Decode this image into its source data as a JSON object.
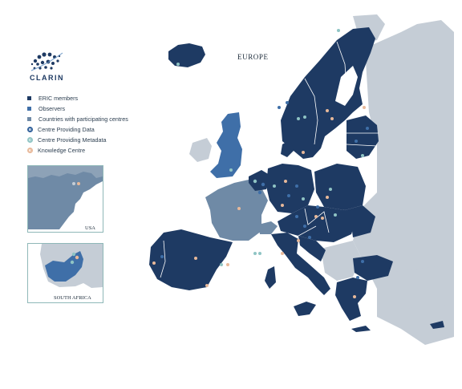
{
  "logo": {
    "name": "CLARIN"
  },
  "map": {
    "title": "EUROPE"
  },
  "legend": {
    "items": [
      {
        "label": "ERIC members",
        "kind": "square",
        "color": "#1e3a63"
      },
      {
        "label": "Observers",
        "kind": "square",
        "color": "#3f6fa8"
      },
      {
        "label": "Countries with participating centres",
        "kind": "square",
        "color": "#6f8aa6"
      },
      {
        "label": "Centre Providing Data",
        "kind": "dot",
        "glyph": "B",
        "color": "#2f5f9a"
      },
      {
        "label": "Centre Providing Metadata",
        "kind": "dot",
        "glyph": "C",
        "color": "#8fc4c4"
      },
      {
        "label": "Knowledge Centre",
        "kind": "dot",
        "glyph": "K",
        "color": "#e8b99a"
      }
    ]
  },
  "insets": {
    "usa": {
      "label": "USA"
    },
    "south_africa": {
      "label": "SOUTH AFRICA"
    }
  },
  "colors": {
    "eric": "#1e3a63",
    "observer": "#3f6fa8",
    "participating": "#6f8aa6",
    "other": "#c5cdd6",
    "data_dot": "#2f5f9a",
    "metadata_dot": "#8fc4c4",
    "knowledge_dot": "#e8b99a"
  }
}
